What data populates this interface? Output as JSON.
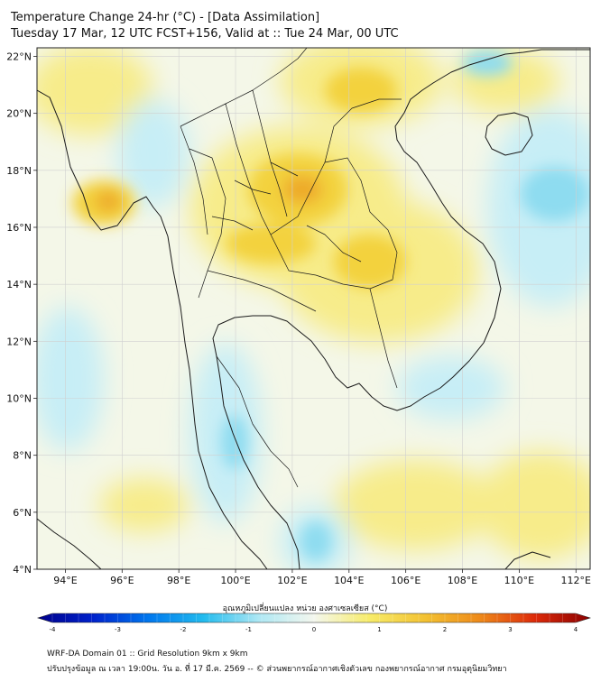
{
  "header": {
    "title_line1": "Temperature Change 24-hr (°C) - [Data Assimilation]",
    "title_line2": "Tuesday 17 Mar, 12 UTC FCST+156, Valid at :: Tue 24 Mar, 00 UTC"
  },
  "map": {
    "lat_ticks": [
      "22°N",
      "20°N",
      "18°N",
      "16°N",
      "14°N",
      "12°N",
      "10°N",
      "8°N",
      "6°N",
      "4°N"
    ],
    "lon_ticks": [
      "94°E",
      "96°E",
      "98°E",
      "100°E",
      "102°E",
      "104°E",
      "106°E",
      "108°E",
      "110°E",
      "112°E"
    ],
    "lat_range": [
      4,
      22.3
    ],
    "lon_range": [
      93,
      112.5
    ],
    "colors": {
      "neutral": "#f4f7e8",
      "warm_light": "#f7ec8a",
      "warm": "#f3d23c",
      "warm_strong": "#eeaa2c",
      "cool_light": "#c7eef6",
      "cool": "#8edcf0",
      "coast": "#1a1a1a",
      "grid": "#d0d0d0"
    }
  },
  "colorbar": {
    "label": "อุณหภูมิเปลี่ยนแปลง หน่วย องศาเซลเซียส (°C)",
    "ticks": [
      "-4",
      "-3",
      "-2",
      "-1",
      "0",
      "1",
      "2",
      "3",
      "4"
    ],
    "range": [
      -4,
      4
    ],
    "stops": [
      "#00008b",
      "#0022cc",
      "#0077ee",
      "#22bbee",
      "#aee8f4",
      "#f4f7ee",
      "#f7ec6a",
      "#f3c232",
      "#ee8a1a",
      "#dd2a0a",
      "#8b0000"
    ]
  },
  "footer": {
    "line1": "WRF-DA Domain 01 :: Grid Resolution 9km x 9km",
    "line2": "ปรับปรุงข้อมูล ณ เวลา 19:00น. วัน อ. ที่ 17 มี.ค. 2569 -- © ส่วนพยากรณ์อากาศเชิงตัวเลข กองพยากรณ์อากาศ กรมอุตุนิยมวิทยา"
  }
}
